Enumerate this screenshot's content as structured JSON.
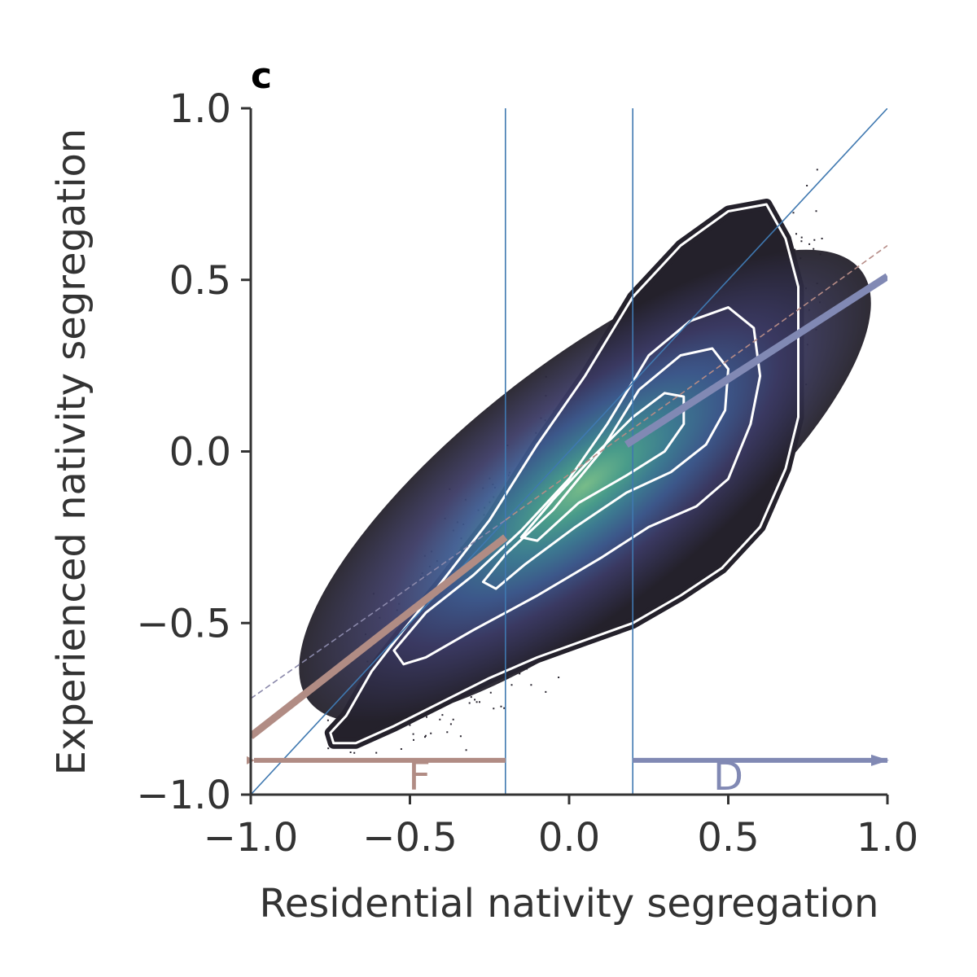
{
  "chart_data": {
    "type": "scatter",
    "panel_label": "c",
    "xlabel": "Residential nativity segregation",
    "ylabel": "Experienced nativity segregation",
    "xlim": [
      -1.0,
      1.0
    ],
    "ylim": [
      -1.0,
      1.0
    ],
    "xticks": [
      -1.0,
      -0.5,
      0.0,
      0.5,
      1.0
    ],
    "yticks": [
      -1.0,
      -0.5,
      0.0,
      0.5,
      1.0
    ],
    "xtick_labels": [
      "−1.0",
      "−0.5",
      "0.0",
      "0.5",
      "1.0"
    ],
    "ytick_labels": [
      "−1.0",
      "−0.5",
      "0.0",
      "0.5",
      "1.0"
    ],
    "grid": false,
    "point_cloud": {
      "description": "dense 2D histogram of census-block pairs",
      "center": [
        0.1,
        -0.1
      ],
      "colormap": [
        "#24212b",
        "#3b3a64",
        "#3d5a8f",
        "#3e7f96",
        "#4ba28f",
        "#7cc48e"
      ]
    },
    "density_contours": [
      {
        "level": 1,
        "points": [
          [
            -0.75,
            -0.82
          ],
          [
            -0.7,
            -0.77
          ],
          [
            -0.62,
            -0.64
          ],
          [
            -0.52,
            -0.52
          ],
          [
            -0.4,
            -0.38
          ],
          [
            -0.25,
            -0.2
          ],
          [
            -0.1,
            0.02
          ],
          [
            0.05,
            0.22
          ],
          [
            0.2,
            0.45
          ],
          [
            0.35,
            0.6
          ],
          [
            0.5,
            0.7
          ],
          [
            0.62,
            0.72
          ],
          [
            0.68,
            0.62
          ],
          [
            0.72,
            0.48
          ],
          [
            0.72,
            0.3
          ],
          [
            0.72,
            0.1
          ],
          [
            0.68,
            -0.05
          ],
          [
            0.6,
            -0.22
          ],
          [
            0.48,
            -0.34
          ],
          [
            0.35,
            -0.42
          ],
          [
            0.2,
            -0.5
          ],
          [
            0.05,
            -0.55
          ],
          [
            -0.1,
            -0.6
          ],
          [
            -0.25,
            -0.66
          ],
          [
            -0.4,
            -0.73
          ],
          [
            -0.55,
            -0.8
          ],
          [
            -0.67,
            -0.85
          ],
          [
            -0.74,
            -0.85
          ],
          [
            -0.75,
            -0.82
          ]
        ]
      },
      {
        "level": 2,
        "points": [
          [
            -0.55,
            -0.58
          ],
          [
            -0.45,
            -0.47
          ],
          [
            -0.3,
            -0.36
          ],
          [
            -0.15,
            -0.23
          ],
          [
            0.0,
            -0.08
          ],
          [
            0.12,
            0.08
          ],
          [
            0.25,
            0.28
          ],
          [
            0.38,
            0.38
          ],
          [
            0.5,
            0.42
          ],
          [
            0.58,
            0.36
          ],
          [
            0.6,
            0.22
          ],
          [
            0.57,
            0.08
          ],
          [
            0.5,
            -0.08
          ],
          [
            0.4,
            -0.16
          ],
          [
            0.25,
            -0.22
          ],
          [
            0.1,
            -0.31
          ],
          [
            -0.1,
            -0.42
          ],
          [
            -0.3,
            -0.52
          ],
          [
            -0.45,
            -0.6
          ],
          [
            -0.52,
            -0.62
          ],
          [
            -0.55,
            -0.58
          ]
        ]
      },
      {
        "level": 3,
        "points": [
          [
            -0.27,
            -0.38
          ],
          [
            -0.2,
            -0.3
          ],
          [
            -0.05,
            -0.17
          ],
          [
            0.1,
            0.0
          ],
          [
            0.22,
            0.18
          ],
          [
            0.35,
            0.28
          ],
          [
            0.45,
            0.3
          ],
          [
            0.5,
            0.24
          ],
          [
            0.49,
            0.12
          ],
          [
            0.43,
            0.02
          ],
          [
            0.32,
            -0.06
          ],
          [
            0.18,
            -0.12
          ],
          [
            0.02,
            -0.22
          ],
          [
            -0.14,
            -0.33
          ],
          [
            -0.23,
            -0.4
          ],
          [
            -0.27,
            -0.38
          ]
        ]
      },
      {
        "level": 4,
        "points": [
          [
            -0.15,
            -0.25
          ],
          [
            -0.05,
            -0.14
          ],
          [
            0.07,
            -0.02
          ],
          [
            0.2,
            0.1
          ],
          [
            0.3,
            0.17
          ],
          [
            0.36,
            0.16
          ],
          [
            0.36,
            0.08
          ],
          [
            0.3,
            0.0
          ],
          [
            0.18,
            -0.07
          ],
          [
            0.03,
            -0.15
          ],
          [
            -0.1,
            -0.26
          ],
          [
            -0.15,
            -0.25
          ]
        ]
      }
    ],
    "reference_lines": {
      "identity": {
        "from": [
          -1.0,
          -1.0
        ],
        "to": [
          1.0,
          1.0
        ],
        "color": "#3f78b0"
      },
      "vertical_thresholds": [
        -0.2,
        0.2
      ],
      "overall_fit": [
        {
          "from": [
            -1.0,
            -0.72
          ],
          "to": [
            -0.2,
            -0.2
          ],
          "color": "#8a88aa"
        },
        {
          "from": [
            -0.2,
            -0.2
          ],
          "to": [
            1.0,
            0.6
          ],
          "color": "#b58b86"
        }
      ]
    },
    "series": [
      {
        "name": "F",
        "color": "#b18c84",
        "line": {
          "from": [
            -1.0,
            -0.83
          ],
          "to": [
            -0.2,
            -0.25
          ]
        },
        "range": [
          -1.0,
          -0.2
        ],
        "arrow_y": -0.9
      },
      {
        "name": "D",
        "color": "#8189b4",
        "line": {
          "from": [
            0.18,
            0.02
          ],
          "to": [
            1.0,
            0.51
          ]
        },
        "range": [
          0.2,
          1.0
        ],
        "arrow_y": -0.9
      }
    ]
  }
}
